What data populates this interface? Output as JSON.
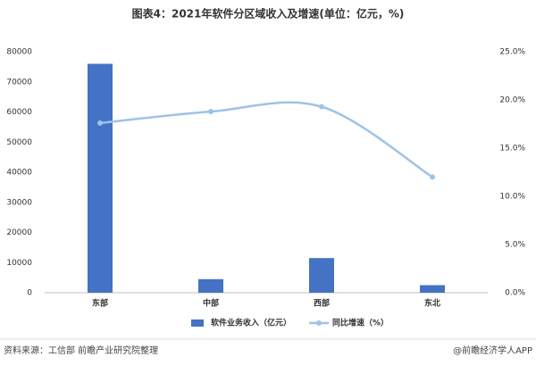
{
  "chart_data": {
    "type": "bar",
    "title": "图表4：2021年软件分区域收入及增速(单位：亿元，%)",
    "categories": [
      "东部",
      "中部",
      "西部",
      "东北"
    ],
    "series": [
      {
        "name": "软件业务收入（亿元）",
        "color": "#4472c4",
        "values": [
          76000,
          4500,
          11500,
          2500
        ]
      },
      {
        "name": "同比增速（%）",
        "color": "#9dc3e6",
        "type": "line",
        "axis": "y2",
        "values": [
          17.6,
          18.8,
          19.3,
          12.0
        ]
      }
    ],
    "ylim": [
      0,
      80000
    ],
    "yticks": [
      0,
      10000,
      20000,
      30000,
      40000,
      50000,
      60000,
      70000,
      80000
    ],
    "y2lim": [
      0,
      25
    ],
    "y2ticks": [
      {
        "value": 0,
        "label": "0.0%"
      },
      {
        "value": 5,
        "label": "5.0%"
      },
      {
        "value": 10,
        "label": "10.0%"
      },
      {
        "value": 15,
        "label": "15.0%"
      },
      {
        "value": 20,
        "label": "20.0%"
      },
      {
        "value": 25,
        "label": "25.0%"
      }
    ],
    "source": "资料来源：工信部 前瞻产业研究院整理",
    "credit": "@前瞻经济学人APP"
  }
}
